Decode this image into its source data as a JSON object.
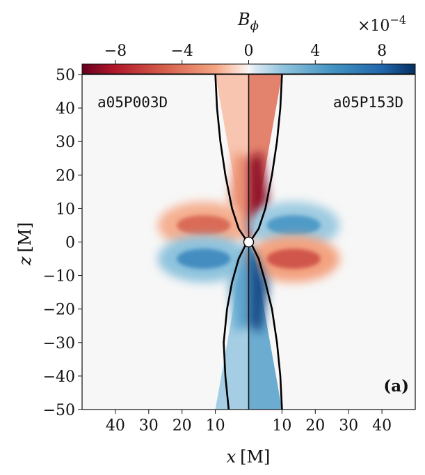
{
  "chart_data": {
    "type": "heatmap",
    "colorbar": {
      "label": "B",
      "label_subscript": "ϕ",
      "scale_prefix": "×10",
      "scale_exponent": "−4",
      "range": [
        -10,
        10
      ],
      "ticks": [
        -8,
        -4,
        0,
        4,
        8
      ],
      "tick_labels": [
        "−8",
        "−4",
        "0",
        "4",
        "8"
      ],
      "colormap": "RdBu"
    },
    "x_axis": {
      "label": "x",
      "unit": "[M]",
      "range": [
        -50,
        50
      ],
      "ticks": [
        -40,
        -30,
        -20,
        -10,
        10,
        20,
        30,
        40
      ],
      "tick_labels": [
        "40",
        "30",
        "20",
        "10",
        "10",
        "20",
        "30",
        "40"
      ]
    },
    "y_axis": {
      "label": "z",
      "unit": "[M]",
      "range": [
        -50,
        50
      ],
      "ticks": [
        50,
        40,
        30,
        20,
        10,
        0,
        -10,
        -20,
        -30,
        -40,
        -50
      ],
      "tick_labels": [
        "50",
        "40",
        "30",
        "20",
        "10",
        "0",
        "−10",
        "−20",
        "−30",
        "−40",
        "−50"
      ]
    },
    "left_panel_label": "a05P003D",
    "right_panel_label": "a05P153D",
    "panel_tag": "(a)",
    "contour_left": {
      "upper": [
        [
          -10,
          50
        ],
        [
          -9.5,
          40
        ],
        [
          -8.5,
          30
        ],
        [
          -7,
          20
        ],
        [
          -5,
          10
        ],
        [
          -3,
          4
        ],
        [
          -1,
          1
        ]
      ],
      "lower": [
        [
          -1,
          -1
        ],
        [
          -3,
          -5
        ],
        [
          -5,
          -12
        ],
        [
          -6.5,
          -20
        ],
        [
          -7.5,
          -30
        ],
        [
          -7,
          -40
        ],
        [
          -6,
          -50
        ]
      ]
    },
    "contour_right": {
      "upper": [
        [
          10,
          50
        ],
        [
          9.5,
          40
        ],
        [
          8.5,
          30
        ],
        [
          7,
          20
        ],
        [
          5,
          10
        ],
        [
          3,
          4
        ],
        [
          1,
          1
        ]
      ],
      "lower": [
        [
          1,
          -1
        ],
        [
          3,
          -5
        ],
        [
          5,
          -12
        ],
        [
          7,
          -20
        ],
        [
          8.5,
          -30
        ],
        [
          9.5,
          -40
        ],
        [
          10,
          -50
        ]
      ]
    },
    "field_features": [
      {
        "name": "left-jet-upper",
        "side": "left",
        "value": -3,
        "x": [
          -10,
          0
        ],
        "z": [
          0,
          50
        ]
      },
      {
        "name": "left-disk-upper-wing",
        "side": "left",
        "value": -5,
        "x": [
          -25,
          -2
        ],
        "z": [
          0,
          10
        ]
      },
      {
        "name": "left-disk-lower-wing",
        "side": "left",
        "value": 6,
        "x": [
          -25,
          -2
        ],
        "z": [
          -10,
          0
        ]
      },
      {
        "name": "left-jet-lower",
        "side": "left",
        "value": 4,
        "x": [
          -10,
          0
        ],
        "z": [
          -50,
          0
        ]
      },
      {
        "name": "right-jet-upper",
        "side": "right",
        "value": -9,
        "x": [
          0,
          10
        ],
        "z": [
          0,
          50
        ]
      },
      {
        "name": "right-disk-upper-wing",
        "side": "right",
        "value": 5,
        "x": [
          2,
          25
        ],
        "z": [
          0,
          10
        ]
      },
      {
        "name": "right-disk-lower-wing",
        "side": "right",
        "value": -6,
        "x": [
          2,
          25
        ],
        "z": [
          -10,
          0
        ]
      },
      {
        "name": "right-jet-lower",
        "side": "right",
        "value": 9,
        "x": [
          0,
          10
        ],
        "z": [
          -50,
          0
        ]
      }
    ]
  }
}
